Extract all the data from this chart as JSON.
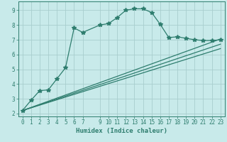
{
  "title": "",
  "xlabel": "Humidex (Indice chaleur)",
  "bg_color": "#c8eaea",
  "plot_bg_color": "#c8eaea",
  "line_color": "#2e7d6e",
  "grid_color": "#a8cece",
  "xlim": [
    -0.5,
    23.5
  ],
  "ylim": [
    1.8,
    9.6
  ],
  "xticks": [
    0,
    1,
    2,
    3,
    4,
    5,
    6,
    7,
    9,
    10,
    11,
    12,
    13,
    14,
    15,
    16,
    17,
    18,
    19,
    20,
    21,
    22,
    23
  ],
  "yticks": [
    2,
    3,
    4,
    5,
    6,
    7,
    8,
    9
  ],
  "curve1_x": [
    0,
    1,
    2,
    3,
    4,
    5,
    6,
    7,
    9,
    10,
    11,
    12,
    13,
    14,
    15,
    16,
    17,
    18,
    19,
    20,
    21,
    22,
    23
  ],
  "curve1_y": [
    2.2,
    2.9,
    3.55,
    3.6,
    4.35,
    5.1,
    7.8,
    7.5,
    8.0,
    8.1,
    8.5,
    9.0,
    9.1,
    9.1,
    8.85,
    8.05,
    7.15,
    7.2,
    7.1,
    7.0,
    6.95,
    6.95,
    7.0
  ],
  "line2_x": [
    0,
    23
  ],
  "line2_y": [
    2.2,
    7.05
  ],
  "line3_x": [
    0,
    23
  ],
  "line3_y": [
    2.2,
    6.7
  ],
  "line4_x": [
    0,
    23
  ],
  "line4_y": [
    2.2,
    6.4
  ],
  "tick_fontsize": 5.5,
  "xlabel_fontsize": 6.5
}
